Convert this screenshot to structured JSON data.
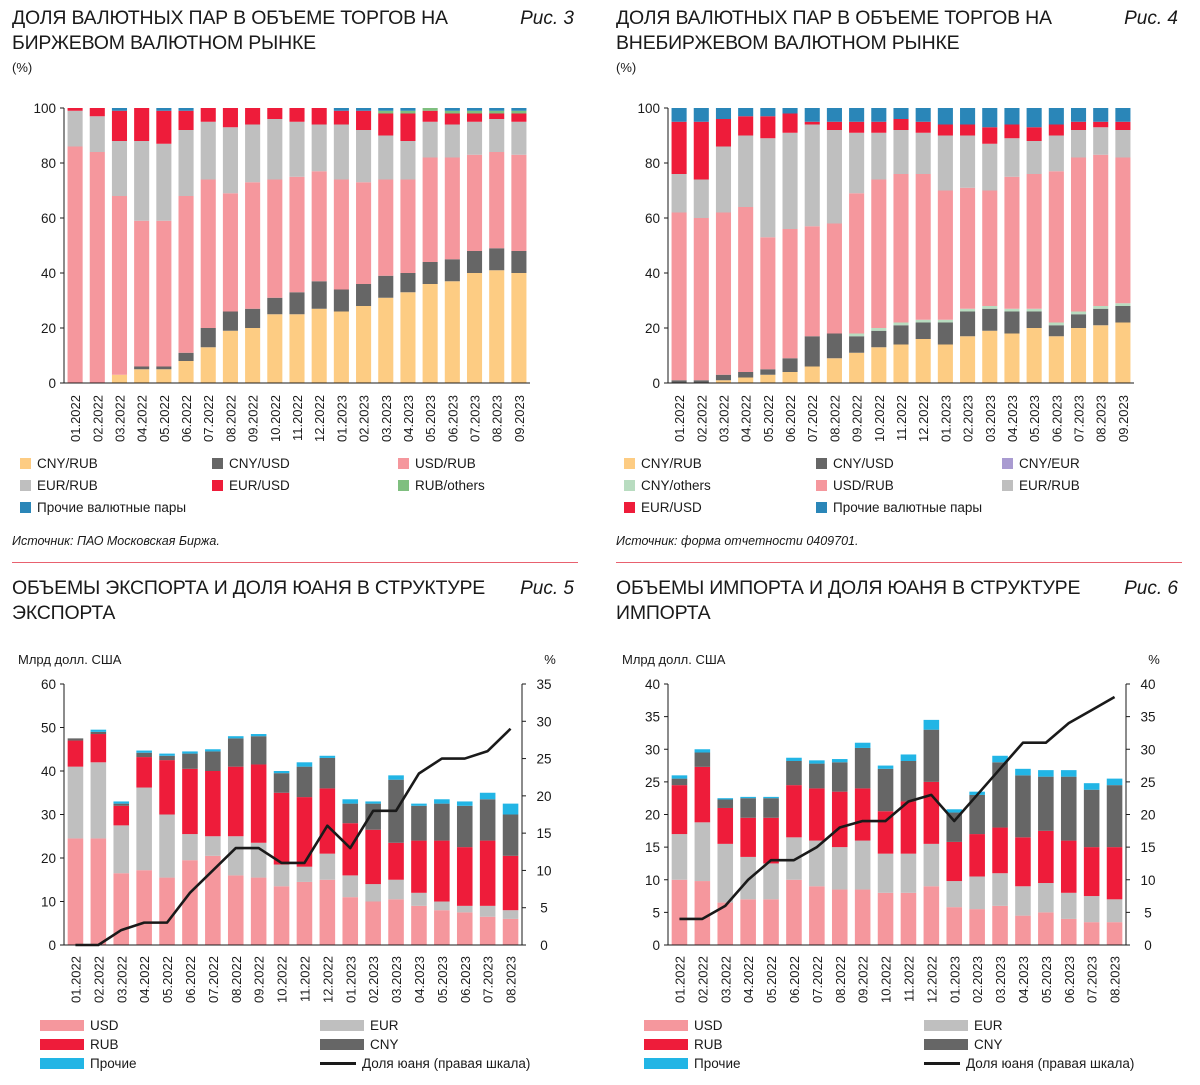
{
  "colors": {
    "CNY_RUB": "#fdcc83",
    "CNY_USD": "#666666",
    "USD_RUB": "#f5979d",
    "EUR_RUB": "#bfbfbf",
    "EUR_USD": "#ee1c3a",
    "RUB_others": "#7fbf7f",
    "other_pairs": "#2a86b8",
    "CNY_EUR": "#a99bd1",
    "CNY_others": "#b8dcc0",
    "USD": "#f5979d",
    "EUR": "#bfbfbf",
    "RUB": "#ee1c3a",
    "CNY": "#666666",
    "Other": "#22b5e5",
    "line": "#1a1a1a",
    "separator": "#e8616f"
  },
  "fig3": {
    "title": "ДОЛЯ ВАЛЮТНЫХ ПАР В ОБЪЕМЕ ТОРГОВ НА БИРЖЕВОМ ВАЛЮТНОМ РЫНКЕ",
    "fig_label": "Рис. 3",
    "unit": "(%)",
    "source": "Источник: ПАО Московская Биржа.",
    "legend": {
      "cny_rub": "CNY/RUB",
      "cny_usd": "CNY/USD",
      "usd_rub": "USD/RUB",
      "eur_rub": "EUR/RUB",
      "eur_usd": "EUR/USD",
      "rub_others": "RUB/others",
      "other": "Прочие валютные пары"
    }
  },
  "fig4": {
    "title": "ДОЛЯ ВАЛЮТНЫХ ПАР В ОБЪЕМЕ ТОРГОВ НА ВНЕБИРЖЕВОМ ВАЛЮТНОМ РЫНКЕ",
    "fig_label": "Рис. 4",
    "unit": "(%)",
    "source": "Источник: форма отчетности 0409701.",
    "legend": {
      "cny_rub": "CNY/RUB",
      "cny_usd": "CNY/USD",
      "cny_eur": "CNY/EUR",
      "cny_others": "CNY/others",
      "usd_rub": "USD/RUB",
      "eur_rub": "EUR/RUB",
      "eur_usd": "EUR/USD",
      "other": "Прочие валютные пары"
    }
  },
  "fig5": {
    "title": "ОБЪЕМЫ ЭКСПОРТА И ДОЛЯ ЮАНЯ В СТРУКТУРЕ ЭКСПОРТА",
    "fig_label": "Рис. 5",
    "left_unit": "Млрд долл. США",
    "right_unit": "%",
    "legend": {
      "usd": "USD",
      "eur": "EUR",
      "rub": "RUB",
      "cny": "CNY",
      "other": "Прочие",
      "line": "Доля юаня (правая шкала)"
    }
  },
  "fig6": {
    "title": "ОБЪЕМЫ ИМПОРТА И ДОЛЯ ЮАНЯ В СТРУКТУРЕ ИМПОРТА",
    "fig_label": "Рис. 6",
    "left_unit": "Млрд долл. США",
    "right_unit": "%",
    "legend": {
      "usd": "USD",
      "eur": "EUR",
      "rub": "RUB",
      "cny": "CNY",
      "other": "Прочие",
      "line": "Доля юаня (правая шкала)"
    }
  },
  "chart_data": [
    {
      "id": "fig3",
      "type": "bar",
      "stacked": true,
      "title": "ДОЛЯ ВАЛЮТНЫХ ПАР В ОБЪЕМЕ ТОРГОВ НА БИРЖЕВОМ ВАЛЮТНОМ РЫНКЕ",
      "ylim": [
        0,
        100
      ],
      "yticks": [
        0,
        20,
        40,
        60,
        80,
        100
      ],
      "categories": [
        "01.2022",
        "02.2022",
        "03.2022",
        "04.2022",
        "05.2022",
        "06.2022",
        "07.2022",
        "08.2022",
        "09.2022",
        "10.2022",
        "11.2022",
        "12.2022",
        "01.2023",
        "02.2023",
        "03.2023",
        "04.2023",
        "05.2023",
        "06.2023",
        "07.2023",
        "08.2023",
        "09.2023"
      ],
      "series": [
        {
          "name": "CNY/RUB",
          "color_key": "CNY_RUB",
          "values": [
            0,
            0,
            3,
            5,
            5,
            8,
            13,
            19,
            20,
            25,
            25,
            27,
            26,
            28,
            31,
            33,
            36,
            37,
            40,
            41,
            40
          ]
        },
        {
          "name": "CNY/USD",
          "color_key": "CNY_USD",
          "values": [
            0,
            0,
            0,
            1,
            1,
            3,
            7,
            7,
            7,
            6,
            8,
            10,
            8,
            8,
            8,
            7,
            8,
            8,
            8,
            8,
            8
          ]
        },
        {
          "name": "USD/RUB",
          "color_key": "USD_RUB",
          "values": [
            86,
            84,
            65,
            53,
            53,
            57,
            54,
            43,
            46,
            43,
            42,
            40,
            40,
            37,
            35,
            34,
            38,
            37,
            35,
            35,
            35
          ]
        },
        {
          "name": "EUR/RUB",
          "color_key": "EUR_RUB",
          "values": [
            13,
            13,
            20,
            29,
            28,
            24,
            21,
            24,
            21,
            22,
            20,
            17,
            20,
            19,
            16,
            14,
            13,
            12,
            12,
            12,
            12
          ]
        },
        {
          "name": "EUR/USD",
          "color_key": "EUR_USD",
          "values": [
            1,
            3,
            11,
            12,
            12,
            7,
            5,
            7,
            6,
            4,
            5,
            6,
            5,
            7,
            8,
            10,
            4,
            4,
            3,
            2,
            3
          ]
        },
        {
          "name": "RUB/others",
          "color_key": "RUB_others",
          "values": [
            0,
            0,
            0,
            0,
            0,
            0,
            0,
            0,
            0,
            0,
            0,
            0,
            0,
            0,
            1,
            1,
            1,
            1,
            1,
            1,
            1
          ]
        },
        {
          "name": "Прочие валютные пары",
          "color_key": "other_pairs",
          "values": [
            0,
            0,
            1,
            0,
            1,
            1,
            0,
            0,
            0,
            0,
            0,
            0,
            1,
            1,
            1,
            1,
            0,
            1,
            1,
            1,
            1
          ]
        }
      ]
    },
    {
      "id": "fig4",
      "type": "bar",
      "stacked": true,
      "title": "ДОЛЯ ВАЛЮТНЫХ ПАР В ОБЪЕМЕ ТОРГОВ НА ВНЕБИРЖЕВОМ ВАЛЮТНОМ РЫНКЕ",
      "ylim": [
        0,
        100
      ],
      "yticks": [
        0,
        20,
        40,
        60,
        80,
        100
      ],
      "categories": [
        "01.2022",
        "02.2022",
        "03.2022",
        "04.2022",
        "05.2022",
        "06.2022",
        "07.2022",
        "08.2022",
        "09.2022",
        "10.2022",
        "11.2022",
        "12.2022",
        "01.2023",
        "02.2023",
        "03.2023",
        "04.2023",
        "05.2023",
        "06.2023",
        "07.2023",
        "08.2023",
        "09.2023"
      ],
      "series": [
        {
          "name": "CNY/RUB",
          "color_key": "CNY_RUB",
          "values": [
            0,
            0,
            1,
            2,
            3,
            4,
            6,
            9,
            11,
            13,
            14,
            16,
            14,
            17,
            19,
            18,
            20,
            17,
            20,
            21,
            22
          ]
        },
        {
          "name": "CNY/USD",
          "color_key": "CNY_USD",
          "values": [
            1,
            1,
            2,
            2,
            2,
            5,
            11,
            9,
            6,
            6,
            7,
            6,
            8,
            9,
            8,
            8,
            6,
            4,
            5,
            6,
            6
          ]
        },
        {
          "name": "CNY/EUR",
          "color_key": "CNY_EUR",
          "values": [
            0,
            0,
            0,
            0,
            0,
            0,
            0,
            0,
            0,
            0,
            0,
            0,
            0,
            0,
            0,
            0,
            0,
            0,
            0,
            0,
            0
          ]
        },
        {
          "name": "CNY/others",
          "color_key": "CNY_others",
          "values": [
            0,
            0,
            0,
            0,
            0,
            0,
            0,
            0,
            1,
            1,
            1,
            1,
            1,
            1,
            1,
            1,
            1,
            1,
            1,
            1,
            1
          ]
        },
        {
          "name": "USD/RUB",
          "color_key": "USD_RUB",
          "values": [
            61,
            59,
            59,
            60,
            48,
            47,
            40,
            40,
            51,
            54,
            54,
            53,
            47,
            44,
            42,
            48,
            49,
            55,
            56,
            55,
            53
          ]
        },
        {
          "name": "EUR/RUB",
          "color_key": "EUR_RUB",
          "values": [
            14,
            14,
            24,
            26,
            36,
            35,
            37,
            34,
            22,
            17,
            16,
            15,
            20,
            19,
            17,
            14,
            12,
            13,
            10,
            10,
            10
          ]
        },
        {
          "name": "EUR/USD",
          "color_key": "EUR_USD",
          "values": [
            19,
            21,
            10,
            7,
            8,
            7,
            1,
            3,
            4,
            4,
            4,
            4,
            4,
            4,
            6,
            5,
            5,
            4,
            3,
            2,
            3
          ]
        },
        {
          "name": "Прочие валютные пары",
          "color_key": "other_pairs",
          "values": [
            5,
            5,
            4,
            3,
            3,
            2,
            5,
            5,
            5,
            5,
            4,
            5,
            6,
            6,
            7,
            6,
            7,
            6,
            5,
            5,
            5
          ]
        }
      ]
    },
    {
      "id": "fig5",
      "type": "bar",
      "stacked": true,
      "title": "ОБЪЕМЫ ЭКСПОРТА И ДОЛЯ ЮАНЯ В СТРУКТУРЕ ЭКСПОРТА",
      "ylabel": "Млрд долл. США",
      "ylabel_right": "%",
      "ylim": [
        0,
        60
      ],
      "yticks": [
        0,
        10,
        20,
        30,
        40,
        50,
        60
      ],
      "ylim_right": [
        0,
        35
      ],
      "yticks_right": [
        0,
        5,
        10,
        15,
        20,
        25,
        30,
        35
      ],
      "categories": [
        "01.2022",
        "02.2022",
        "03.2022",
        "04.2022",
        "05.2022",
        "06.2022",
        "07.2022",
        "08.2022",
        "09.2022",
        "10.2022",
        "11.2022",
        "12.2022",
        "01.2023",
        "02.2023",
        "03.2023",
        "04.2023",
        "05.2023",
        "06.2023",
        "07.2023",
        "08.2023"
      ],
      "series": [
        {
          "name": "USD",
          "color_key": "USD",
          "values": [
            24.5,
            24.5,
            16.5,
            17.2,
            15.5,
            19.5,
            20.5,
            16,
            15.5,
            13.5,
            14.5,
            15,
            11,
            10,
            10.5,
            9,
            8,
            7.5,
            6.5,
            6
          ]
        },
        {
          "name": "EUR",
          "color_key": "EUR",
          "values": [
            16.5,
            17.5,
            11,
            19,
            14.5,
            6,
            4.5,
            9,
            8,
            5,
            3.5,
            6,
            5,
            4,
            4.5,
            3,
            2,
            1.5,
            2.5,
            2
          ]
        },
        {
          "name": "RUB",
          "color_key": "RUB",
          "values": [
            6,
            6.5,
            4.5,
            7,
            12.5,
            15,
            15,
            16,
            18,
            16.5,
            16,
            15,
            12,
            12.5,
            8.5,
            12,
            14,
            13.5,
            15,
            12.5
          ]
        },
        {
          "name": "CNY",
          "color_key": "CNY",
          "values": [
            0.5,
            0.5,
            0.5,
            1,
            1,
            3.5,
            4.5,
            6.5,
            6.5,
            4.5,
            7,
            7,
            4.5,
            6,
            14.5,
            8,
            8.5,
            9.5,
            9.5,
            9.5
          ]
        },
        {
          "name": "Прочие",
          "color_key": "Other",
          "values": [
            0,
            0.5,
            0.5,
            0.5,
            0.5,
            0.5,
            0.5,
            0.5,
            0.5,
            0.5,
            1,
            0.5,
            1,
            0.5,
            1,
            0.5,
            1,
            1,
            1.5,
            2.5
          ]
        }
      ],
      "line": {
        "name": "Доля юаня (правая шкала)",
        "axis": "right",
        "values": [
          0,
          0,
          2,
          3,
          3,
          7,
          10,
          13,
          13,
          11,
          11,
          16,
          13,
          18,
          18,
          23,
          25,
          25,
          26,
          29
        ]
      }
    },
    {
      "id": "fig6",
      "type": "bar",
      "stacked": true,
      "title": "ОБЪЕМЫ ИМПОРТА И ДОЛЯ ЮАНЯ В СТРУКТУРЕ ИМПОРТА",
      "ylabel": "Млрд долл. США",
      "ylabel_right": "%",
      "ylim": [
        0,
        40
      ],
      "yticks": [
        0,
        5,
        10,
        15,
        20,
        25,
        30,
        35,
        40
      ],
      "ylim_right": [
        0,
        40
      ],
      "yticks_right": [
        0,
        5,
        10,
        15,
        20,
        25,
        30,
        35,
        40
      ],
      "categories": [
        "01.2022",
        "02.2022",
        "03.2022",
        "04.2022",
        "05.2022",
        "06.2022",
        "07.2022",
        "08.2022",
        "09.2022",
        "10.2022",
        "11.2022",
        "12.2022",
        "01.2023",
        "02.2023",
        "03.2023",
        "04.2023",
        "05.2023",
        "06.2023",
        "07.2023",
        "08.2023"
      ],
      "series": [
        {
          "name": "USD",
          "color_key": "USD",
          "values": [
            10,
            9.8,
            6.5,
            7,
            7,
            10,
            9,
            8.5,
            8.5,
            8,
            8,
            9,
            5.8,
            5.5,
            6,
            4.5,
            5,
            4,
            3.5,
            3.5
          ]
        },
        {
          "name": "EUR",
          "color_key": "EUR",
          "values": [
            7,
            9,
            9,
            6.5,
            5.5,
            6.5,
            7,
            6.5,
            7.5,
            6,
            6,
            6.5,
            4,
            5,
            5,
            4.5,
            4.5,
            4,
            4,
            3.5
          ]
        },
        {
          "name": "RUB",
          "color_key": "RUB",
          "values": [
            7.5,
            8.5,
            5.5,
            6,
            7,
            8,
            8,
            8.5,
            8,
            6.5,
            8,
            9.5,
            6,
            6.5,
            7,
            7.5,
            8,
            8,
            7.5,
            8
          ]
        },
        {
          "name": "CNY",
          "color_key": "CNY",
          "values": [
            1,
            2.2,
            1.3,
            3,
            3,
            3.7,
            3.8,
            4.5,
            6.2,
            6.5,
            6.2,
            8,
            4.5,
            6,
            10,
            9.5,
            8.3,
            9.8,
            8.8,
            9.5
          ]
        },
        {
          "name": "Прочие",
          "color_key": "Other",
          "values": [
            0.5,
            0.5,
            0.2,
            0.2,
            0.2,
            0.5,
            0.5,
            0.5,
            0.8,
            0.5,
            1,
            1.5,
            0.5,
            0.5,
            1,
            1,
            1,
            1,
            1,
            1
          ]
        }
      ],
      "line": {
        "name": "Доля юаня (правая шкала)",
        "axis": "right",
        "values": [
          4,
          4,
          6,
          10,
          13,
          13,
          15,
          18,
          19,
          19,
          22,
          23,
          19,
          23,
          27,
          31,
          31,
          34,
          36,
          38
        ]
      }
    }
  ]
}
